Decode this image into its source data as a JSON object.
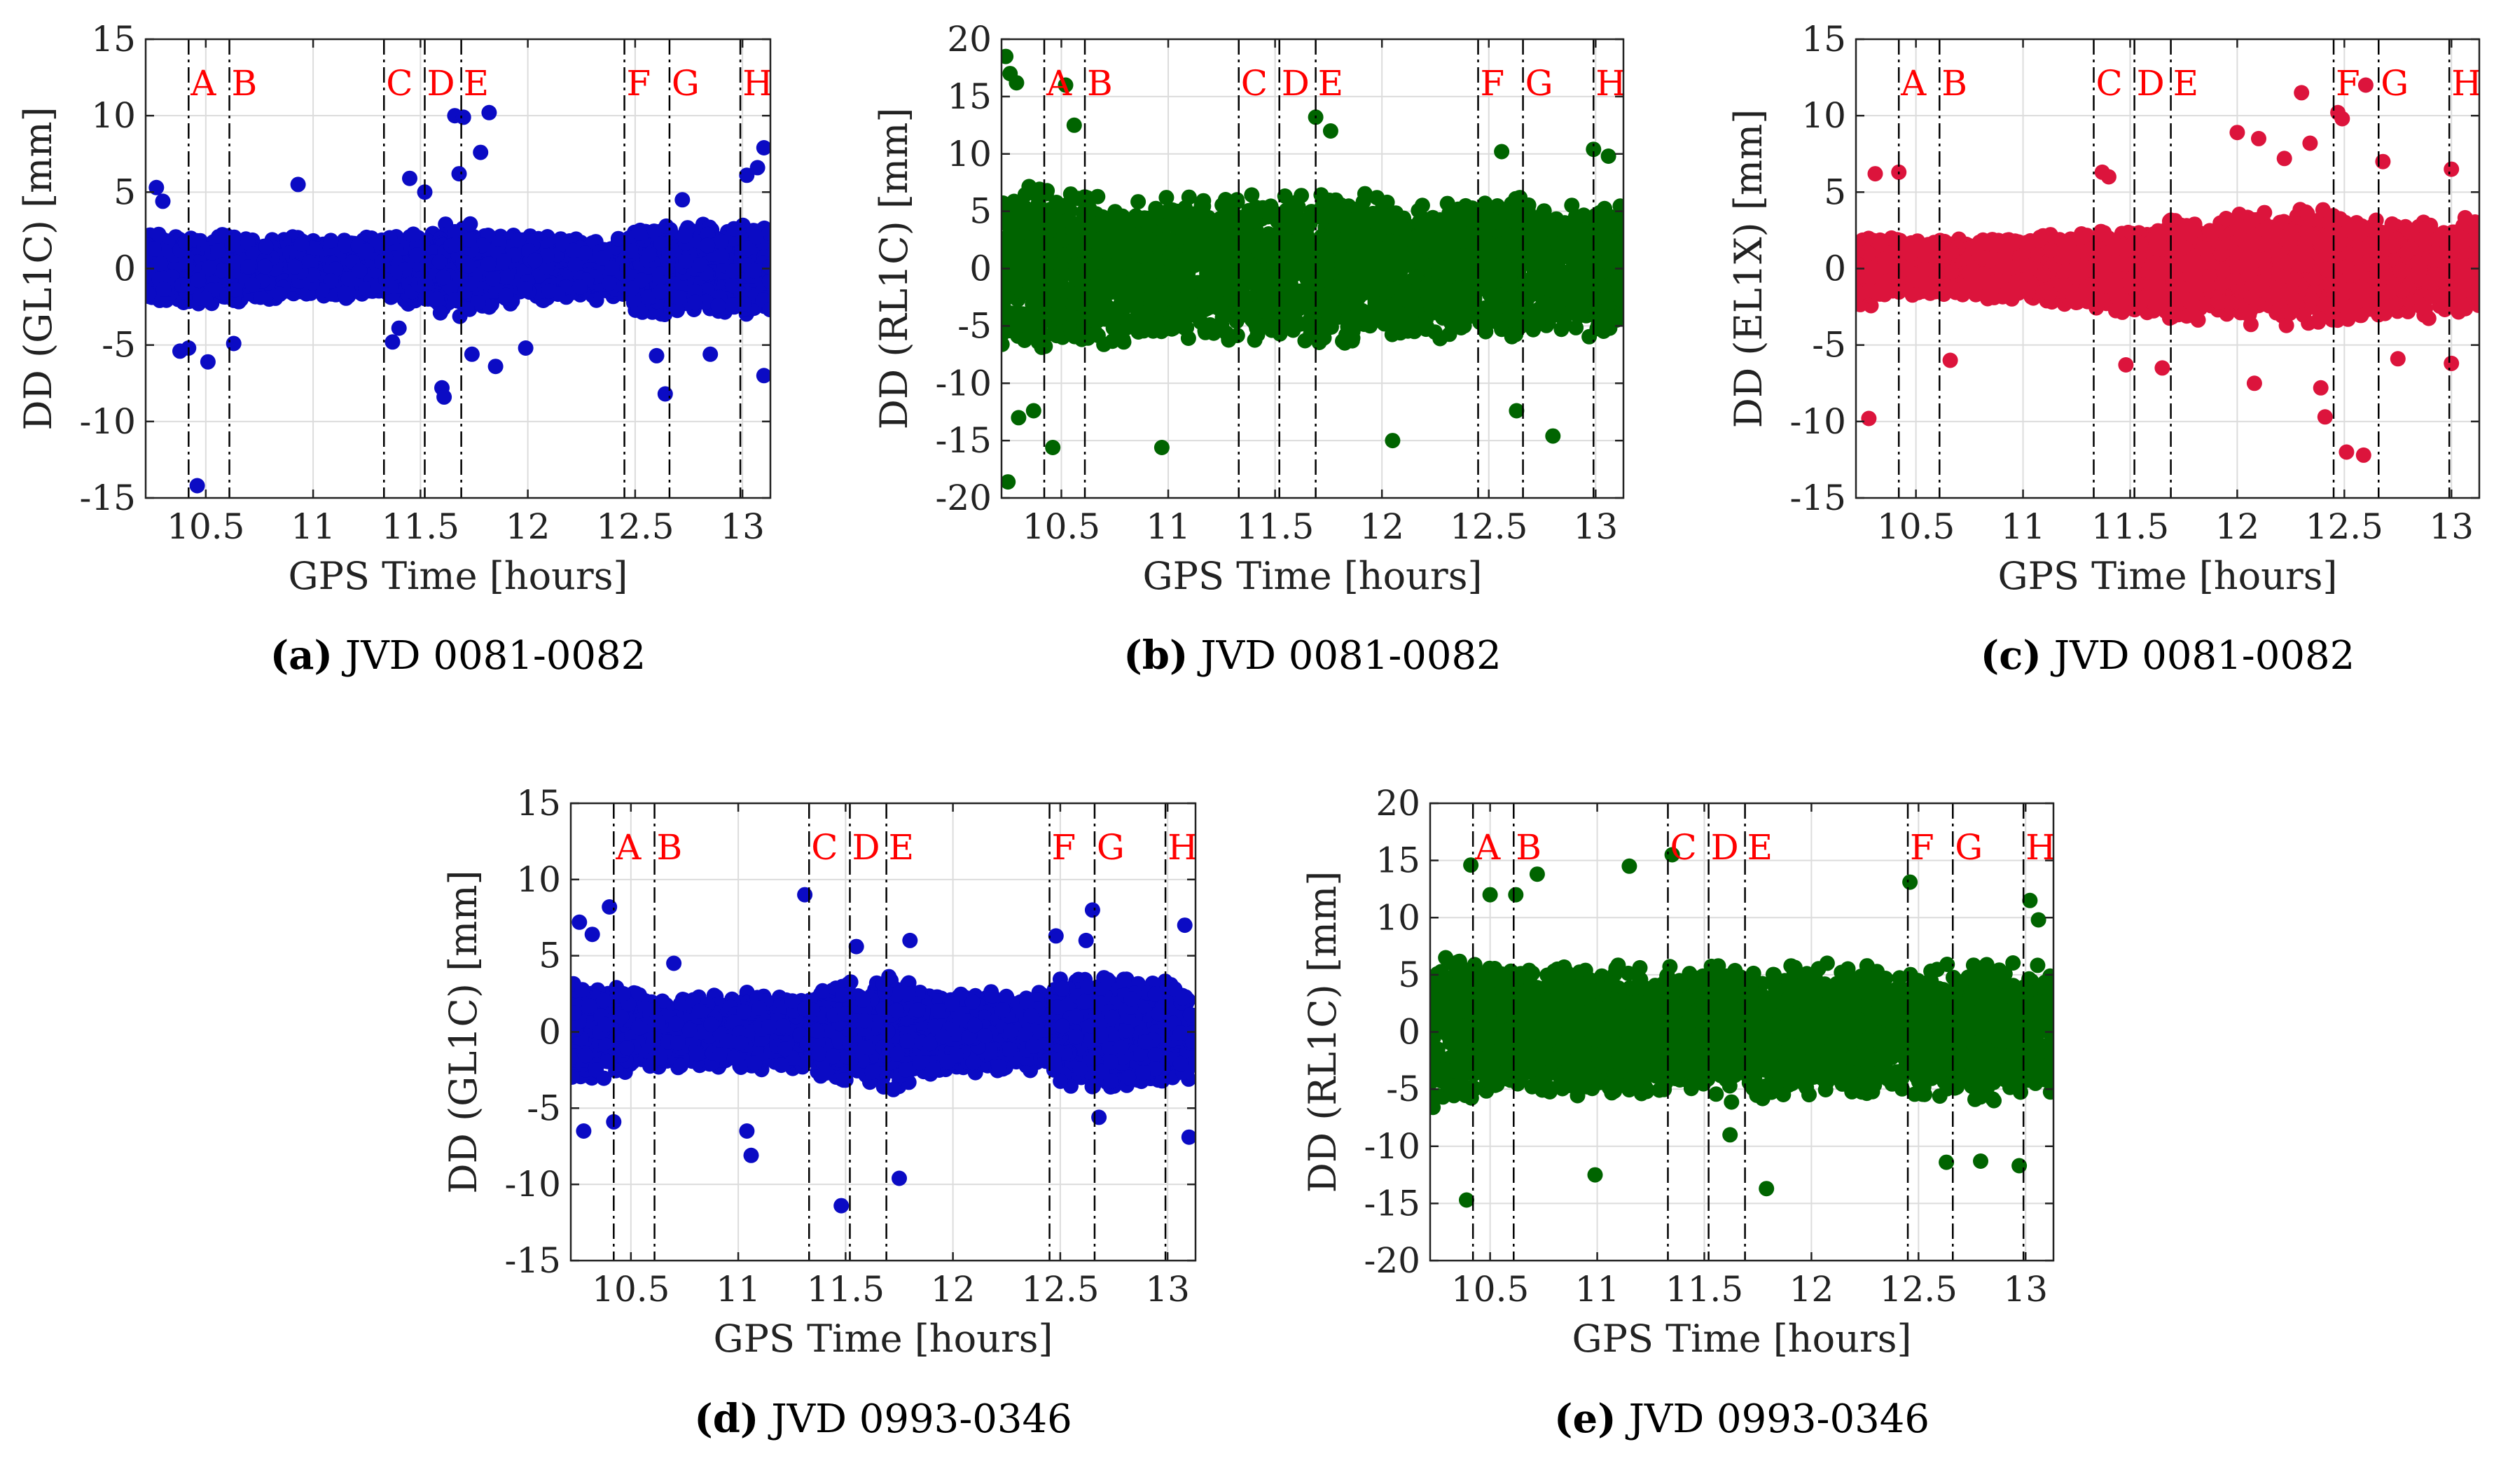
{
  "chart_data": [
    {
      "type": "scatter",
      "caption_label": "(a)",
      "caption_text": "JVD 0081-0082",
      "xlabel": "GPS Time [hours]",
      "ylabel": "DD (GL1C) [mm]",
      "xlim": [
        10.22,
        13.13
      ],
      "ylim": [
        -15,
        15
      ],
      "xticks": [
        10.5,
        11,
        11.5,
        12,
        12.5,
        13
      ],
      "yticks": [
        -15,
        -10,
        -5,
        0,
        5,
        10,
        15
      ],
      "grid": true,
      "color": "#0b0bc4",
      "events": [
        {
          "label": "A",
          "x": 10.42
        },
        {
          "label": "B",
          "x": 10.61
        },
        {
          "label": "C",
          "x": 11.33
        },
        {
          "label": "D",
          "x": 11.52
        },
        {
          "label": "E",
          "x": 11.69
        },
        {
          "label": "F",
          "x": 12.45
        },
        {
          "label": "G",
          "x": 12.66
        },
        {
          "label": "H",
          "x": 12.99
        }
      ],
      "series": [
        {
          "band": [
            [
              10.22,
              2.6
            ],
            [
              10.42,
              2.6
            ],
            [
              10.61,
              2.4
            ],
            [
              11.0,
              2.1
            ],
            [
              11.33,
              2.3
            ],
            [
              11.52,
              2.9
            ],
            [
              11.69,
              3.2
            ],
            [
              12.0,
              2.3
            ],
            [
              12.45,
              2.1
            ],
            [
              12.5,
              3.4
            ],
            [
              12.99,
              3.0
            ],
            [
              13.13,
              3.6
            ]
          ],
          "outliers": [
            [
              10.27,
              5.3
            ],
            [
              10.3,
              4.4
            ],
            [
              10.38,
              -5.4
            ],
            [
              10.42,
              -5.2
            ],
            [
              10.46,
              -14.2
            ],
            [
              10.51,
              -6.1
            ],
            [
              10.63,
              -4.9
            ],
            [
              10.93,
              5.5
            ],
            [
              11.37,
              -4.8
            ],
            [
              11.4,
              -3.9
            ],
            [
              11.45,
              5.9
            ],
            [
              11.52,
              5.0
            ],
            [
              11.6,
              -7.8
            ],
            [
              11.61,
              -8.4
            ],
            [
              11.66,
              10.0
            ],
            [
              11.68,
              6.2
            ],
            [
              11.7,
              9.9
            ],
            [
              11.74,
              -5.6
            ],
            [
              11.78,
              7.6
            ],
            [
              11.82,
              10.2
            ],
            [
              11.85,
              -6.4
            ],
            [
              11.99,
              -5.2
            ],
            [
              12.6,
              -5.7
            ],
            [
              12.64,
              -8.2
            ],
            [
              12.72,
              4.5
            ],
            [
              12.85,
              -5.6
            ],
            [
              13.02,
              6.1
            ],
            [
              13.07,
              6.6
            ],
            [
              13.1,
              7.9
            ],
            [
              13.1,
              -7.0
            ]
          ]
        }
      ]
    },
    {
      "type": "scatter",
      "caption_label": "(b)",
      "caption_text": "JVD 0081-0082",
      "xlabel": "GPS Time [hours]",
      "ylabel": "DD (RL1C) [mm]",
      "xlim": [
        10.22,
        13.13
      ],
      "ylim": [
        -20,
        20
      ],
      "xticks": [
        10.5,
        11,
        11.5,
        12,
        12.5,
        13
      ],
      "yticks": [
        -20,
        -15,
        -10,
        -5,
        0,
        5,
        10,
        15,
        20
      ],
      "grid": true,
      "color": "#006400",
      "events": [
        {
          "label": "A",
          "x": 10.42
        },
        {
          "label": "B",
          "x": 10.61
        },
        {
          "label": "C",
          "x": 11.33
        },
        {
          "label": "D",
          "x": 11.52
        },
        {
          "label": "E",
          "x": 11.69
        },
        {
          "label": "F",
          "x": 12.45
        },
        {
          "label": "G",
          "x": 12.66
        },
        {
          "label": "H",
          "x": 12.99
        }
      ],
      "series": [
        {
          "band": [
            [
              10.22,
              8.0
            ],
            [
              10.42,
              7.5
            ],
            [
              10.61,
              7.0
            ],
            [
              11.0,
              6.8
            ],
            [
              11.33,
              6.5
            ],
            [
              11.52,
              6.8
            ],
            [
              11.69,
              7.2
            ],
            [
              12.0,
              6.8
            ],
            [
              12.45,
              6.2
            ],
            [
              12.5,
              6.5
            ],
            [
              12.99,
              6.0
            ],
            [
              13.13,
              6.5
            ]
          ],
          "outliers": [
            [
              10.24,
              18.5
            ],
            [
              10.26,
              17.0
            ],
            [
              10.29,
              16.2
            ],
            [
              10.25,
              -18.6
            ],
            [
              10.3,
              -13.0
            ],
            [
              10.37,
              -12.4
            ],
            [
              10.46,
              -15.6
            ],
            [
              10.52,
              16.0
            ],
            [
              10.56,
              12.5
            ],
            [
              10.97,
              -15.6
            ],
            [
              11.69,
              13.2
            ],
            [
              11.76,
              12.0
            ],
            [
              12.05,
              -15.0
            ],
            [
              12.56,
              10.2
            ],
            [
              12.63,
              -12.4
            ],
            [
              12.8,
              -14.6
            ],
            [
              12.99,
              10.4
            ],
            [
              13.06,
              9.8
            ]
          ]
        }
      ]
    },
    {
      "type": "scatter",
      "caption_label": "(c)",
      "caption_text": "JVD 0081-0082",
      "xlabel": "GPS Time [hours]",
      "ylabel": "DD (EL1X) [mm]",
      "xlim": [
        10.22,
        13.13
      ],
      "ylim": [
        -15,
        15
      ],
      "xticks": [
        10.5,
        11,
        11.5,
        12,
        12.5,
        13
      ],
      "yticks": [
        -15,
        -10,
        -5,
        0,
        5,
        10,
        15
      ],
      "grid": true,
      "color": "#dc143c",
      "events": [
        {
          "label": "A",
          "x": 10.42
        },
        {
          "label": "B",
          "x": 10.61
        },
        {
          "label": "C",
          "x": 11.33
        },
        {
          "label": "D",
          "x": 11.52
        },
        {
          "label": "E",
          "x": 11.69
        },
        {
          "label": "F",
          "x": 12.45
        },
        {
          "label": "G",
          "x": 12.66
        },
        {
          "label": "H",
          "x": 12.99
        }
      ],
      "series": [
        {
          "band": [
            [
              10.22,
              2.6
            ],
            [
              10.42,
              2.2
            ],
            [
              10.61,
              2.0
            ],
            [
              11.0,
              2.4
            ],
            [
              11.33,
              2.6
            ],
            [
              11.52,
              3.3
            ],
            [
              11.69,
              3.4
            ],
            [
              12.0,
              3.8
            ],
            [
              12.25,
              4.2
            ],
            [
              12.45,
              4.5
            ],
            [
              12.5,
              3.6
            ],
            [
              12.99,
              3.4
            ],
            [
              13.13,
              3.5
            ]
          ],
          "outliers": [
            [
              10.28,
              -9.8
            ],
            [
              10.31,
              6.2
            ],
            [
              10.42,
              6.3
            ],
            [
              10.66,
              -6.0
            ],
            [
              11.37,
              6.3
            ],
            [
              11.4,
              6.0
            ],
            [
              11.48,
              -6.3
            ],
            [
              11.65,
              -6.5
            ],
            [
              12.0,
              8.9
            ],
            [
              12.08,
              -7.5
            ],
            [
              12.1,
              8.5
            ],
            [
              12.22,
              7.2
            ],
            [
              12.3,
              11.5
            ],
            [
              12.34,
              8.2
            ],
            [
              12.39,
              -7.8
            ],
            [
              12.41,
              -9.7
            ],
            [
              12.47,
              10.2
            ],
            [
              12.49,
              9.8
            ],
            [
              12.51,
              -12.0
            ],
            [
              12.59,
              -12.2
            ],
            [
              12.6,
              12.0
            ],
            [
              12.68,
              7.0
            ],
            [
              12.75,
              -5.9
            ],
            [
              13.0,
              -6.2
            ],
            [
              13.0,
              6.5
            ]
          ]
        }
      ]
    },
    {
      "type": "scatter",
      "caption_label": "(d)",
      "caption_text": "JVD 0993-0346",
      "xlabel": "GPS Time [hours]",
      "ylabel": "DD (GL1C) [mm]",
      "xlim": [
        10.22,
        13.13
      ],
      "ylim": [
        -15,
        15
      ],
      "xticks": [
        10.5,
        11,
        11.5,
        12,
        12.5,
        13
      ],
      "yticks": [
        -15,
        -10,
        -5,
        0,
        5,
        10,
        15
      ],
      "grid": true,
      "color": "#0b0bc4",
      "events": [
        {
          "label": "A",
          "x": 10.42
        },
        {
          "label": "B",
          "x": 10.61
        },
        {
          "label": "C",
          "x": 11.33
        },
        {
          "label": "D",
          "x": 11.52
        },
        {
          "label": "E",
          "x": 11.69
        },
        {
          "label": "F",
          "x": 12.45
        },
        {
          "label": "G",
          "x": 12.66
        },
        {
          "label": "H",
          "x": 12.99
        }
      ],
      "series": [
        {
          "band": [
            [
              10.22,
              3.6
            ],
            [
              10.42,
              3.2
            ],
            [
              10.61,
              2.5
            ],
            [
              11.0,
              2.6
            ],
            [
              11.33,
              2.8
            ],
            [
              11.52,
              3.6
            ],
            [
              11.69,
              4.2
            ],
            [
              12.0,
              2.8
            ],
            [
              12.45,
              2.8
            ],
            [
              12.5,
              3.8
            ],
            [
              12.66,
              4.2
            ],
            [
              12.99,
              3.6
            ],
            [
              13.13,
              3.8
            ]
          ],
          "outliers": [
            [
              10.26,
              7.2
            ],
            [
              10.28,
              -6.5
            ],
            [
              10.32,
              6.4
            ],
            [
              10.4,
              8.2
            ],
            [
              10.42,
              -5.9
            ],
            [
              10.7,
              4.5
            ],
            [
              11.04,
              -6.5
            ],
            [
              11.06,
              -8.1
            ],
            [
              11.31,
              9.0
            ],
            [
              11.48,
              -11.4
            ],
            [
              11.55,
              5.6
            ],
            [
              11.75,
              -9.6
            ],
            [
              11.8,
              6.0
            ],
            [
              12.48,
              6.3
            ],
            [
              12.62,
              6.0
            ],
            [
              12.65,
              8.0
            ],
            [
              12.68,
              -5.6
            ],
            [
              13.08,
              7.0
            ],
            [
              13.1,
              -6.9
            ]
          ]
        }
      ]
    },
    {
      "type": "scatter",
      "caption_label": "(e)",
      "caption_text": "JVD 0993-0346",
      "xlabel": "GPS Time [hours]",
      "ylabel": "DD (RL1C) [mm]",
      "xlim": [
        10.22,
        13.13
      ],
      "ylim": [
        -20,
        20
      ],
      "xticks": [
        10.5,
        11,
        11.5,
        12,
        12.5,
        13
      ],
      "yticks": [
        -20,
        -15,
        -10,
        -5,
        0,
        5,
        10,
        15,
        20
      ],
      "grid": true,
      "color": "#006400",
      "events": [
        {
          "label": "A",
          "x": 10.42
        },
        {
          "label": "B",
          "x": 10.61
        },
        {
          "label": "C",
          "x": 11.33
        },
        {
          "label": "D",
          "x": 11.52
        },
        {
          "label": "E",
          "x": 11.69
        },
        {
          "label": "F",
          "x": 12.45
        },
        {
          "label": "G",
          "x": 12.66
        },
        {
          "label": "H",
          "x": 12.99
        }
      ],
      "series": [
        {
          "band": [
            [
              10.22,
              7.0
            ],
            [
              10.42,
              6.8
            ],
            [
              10.61,
              6.0
            ],
            [
              11.0,
              6.2
            ],
            [
              11.33,
              6.0
            ],
            [
              11.52,
              6.2
            ],
            [
              11.69,
              6.4
            ],
            [
              12.0,
              6.2
            ],
            [
              12.45,
              6.0
            ],
            [
              12.5,
              6.4
            ],
            [
              12.99,
              6.2
            ],
            [
              13.13,
              6.5
            ]
          ],
          "outliers": [
            [
              10.39,
              -14.7
            ],
            [
              10.41,
              14.6
            ],
            [
              10.5,
              12.0
            ],
            [
              10.62,
              12.0
            ],
            [
              10.72,
              13.8
            ],
            [
              10.99,
              -12.5
            ],
            [
              11.15,
              14.5
            ],
            [
              11.35,
              15.5
            ],
            [
              11.62,
              -9.0
            ],
            [
              11.79,
              -13.7
            ],
            [
              12.46,
              13.1
            ],
            [
              12.63,
              -11.4
            ],
            [
              12.79,
              -11.3
            ],
            [
              12.97,
              -11.7
            ],
            [
              13.02,
              11.5
            ],
            [
              13.06,
              9.8
            ]
          ]
        }
      ]
    }
  ]
}
